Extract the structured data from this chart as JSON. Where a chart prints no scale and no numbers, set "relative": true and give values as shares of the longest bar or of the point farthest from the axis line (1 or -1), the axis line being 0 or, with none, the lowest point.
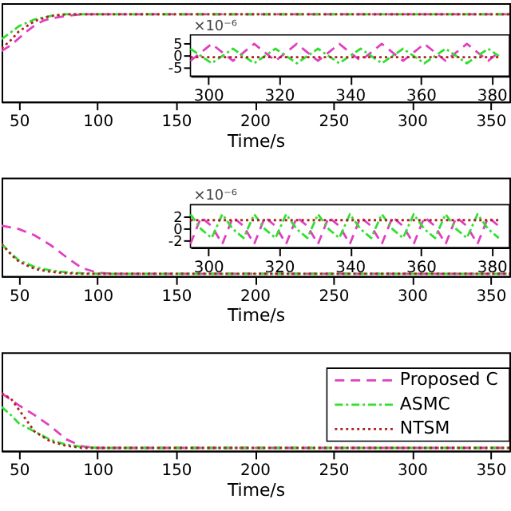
{
  "chart_data": [
    {
      "type": "line",
      "relative": true,
      "xlim": [
        39,
        362
      ],
      "xticks": [
        50,
        100,
        150,
        200,
        250,
        300,
        350
      ],
      "xlabel": "Time/s",
      "series": [
        {
          "color": "#e040c0",
          "line_style": "dashed",
          "x": [
            39,
            45,
            50,
            55,
            60,
            65,
            70,
            80,
            90,
            100,
            362
          ],
          "values": [
            0.57,
            0.64,
            0.72,
            0.8,
            0.87,
            0.92,
            0.95,
            0.98,
            1,
            1,
            1
          ]
        },
        {
          "color": "#30e030",
          "line_style": "dashdot",
          "x": [
            39,
            45,
            50,
            60,
            70,
            80,
            90,
            362
          ],
          "values": [
            0.71,
            0.79,
            0.86,
            0.94,
            0.98,
            1,
            1,
            1
          ]
        },
        {
          "color": "#b02020",
          "line_style": "dotted",
          "x": [
            39,
            45,
            50,
            60,
            70,
            80,
            90,
            362
          ],
          "values": [
            0.6,
            0.7,
            0.8,
            0.92,
            0.98,
            1,
            1,
            1
          ]
        }
      ]
    },
    {
      "type": "line",
      "xlim": [
        295,
        385
      ],
      "xticks": [
        300,
        320,
        340,
        360,
        380
      ],
      "ylim": [
        -8.3,
        8.7
      ],
      "yticks": [
        5,
        0,
        -5
      ],
      "annotations": [
        "×10⁻⁶"
      ],
      "series": [
        {
          "color": "#e040c0",
          "line_style": "dashed",
          "x": [
            295,
            298,
            301,
            304,
            307,
            310,
            313,
            316,
            319,
            322,
            325,
            328,
            331,
            334,
            337,
            340,
            343,
            346,
            349,
            352,
            355,
            358,
            361,
            364,
            367,
            370,
            373,
            376,
            379,
            382
          ],
          "values": [
            -2,
            1.5,
            5,
            1.5,
            -2,
            1.5,
            5,
            1.5,
            -2,
            1.5,
            5,
            1.5,
            -2,
            1.5,
            5,
            1.5,
            -2,
            1.5,
            5,
            1.5,
            -2,
            1.5,
            5,
            1.5,
            -2,
            1.5,
            5,
            1.5,
            -2,
            1.5
          ]
        },
        {
          "color": "#30e030",
          "line_style": "dashdot",
          "x": [
            295,
            298,
            301,
            304,
            307,
            310,
            313,
            316,
            319,
            322,
            325,
            328,
            331,
            334,
            337,
            340,
            343,
            346,
            349,
            352,
            355,
            358,
            361,
            364,
            367,
            370,
            373,
            376,
            379,
            382
          ],
          "values": [
            3,
            0,
            -3,
            0,
            3,
            0,
            -3,
            0,
            3,
            0,
            -3,
            0,
            3,
            0,
            -3,
            0,
            3,
            0,
            -3,
            0,
            3,
            0,
            -3,
            0,
            3,
            0,
            -3,
            0,
            3,
            0
          ]
        },
        {
          "color": "#b02020",
          "line_style": "dotted",
          "x": [
            295,
            382
          ],
          "values": [
            -0.5,
            -0.5
          ]
        }
      ]
    },
    {
      "type": "line",
      "relative": true,
      "xlim": [
        39,
        362
      ],
      "xticks": [
        50,
        100,
        150,
        200,
        250,
        300,
        350
      ],
      "xlabel": "Time/s",
      "series": [
        {
          "color": "#e040c0",
          "line_style": "dashed",
          "x": [
            39,
            50,
            60,
            70,
            80,
            90,
            100,
            110,
            362
          ],
          "values": [
            1,
            0.93,
            0.8,
            0.6,
            0.35,
            0.12,
            0.02,
            0,
            0
          ]
        },
        {
          "color": "#30e030",
          "line_style": "dashdot",
          "x": [
            39,
            45,
            50,
            60,
            70,
            80,
            90,
            100,
            362
          ],
          "values": [
            0.62,
            0.42,
            0.28,
            0.14,
            0.07,
            0.03,
            0.01,
            0,
            0
          ]
        },
        {
          "color": "#b02020",
          "line_style": "dotted",
          "x": [
            39,
            45,
            50,
            60,
            70,
            80,
            90,
            100,
            362
          ],
          "values": [
            0.62,
            0.4,
            0.25,
            0.1,
            0.04,
            0.01,
            0,
            0,
            0
          ]
        }
      ]
    },
    {
      "type": "line",
      "xlim": [
        295,
        385
      ],
      "xticks": [
        300,
        320,
        340,
        360,
        380
      ],
      "ylim": [
        -3.1,
        4.1
      ],
      "yticks": [
        2,
        0,
        -2
      ],
      "annotations": [
        "×10⁻⁶"
      ],
      "series": [
        {
          "color": "#e040c0",
          "line_style": "dashed",
          "x": [
            295,
            298,
            301,
            304,
            307,
            310,
            313,
            316,
            319,
            322,
            325,
            328,
            331,
            334,
            337,
            340,
            343,
            346,
            349,
            352,
            355,
            358,
            361,
            364,
            367,
            370,
            373,
            376,
            379,
            382
          ],
          "values": [
            -2.5,
            2,
            0.5,
            -2.5,
            2,
            0.5,
            -2.5,
            2,
            0.5,
            -2.5,
            2,
            0.5,
            -2.5,
            2,
            0.5,
            -2.5,
            2,
            0.5,
            -2.5,
            2,
            0.5,
            -2.5,
            2,
            0.5,
            -2.5,
            2,
            0.5,
            -2.5,
            2,
            0.5
          ]
        },
        {
          "color": "#30e030",
          "line_style": "dashdot",
          "x": [
            295,
            298,
            301,
            304,
            307,
            310,
            313,
            316,
            319,
            322,
            325,
            328,
            331,
            334,
            337,
            340,
            343,
            346,
            349,
            352,
            355,
            358,
            361,
            364,
            367,
            370,
            373,
            376,
            379,
            382
          ],
          "values": [
            2.5,
            0,
            -1.5,
            2.5,
            0,
            -1.5,
            2.5,
            0,
            -1.5,
            2.5,
            0,
            -1.5,
            2.5,
            0,
            -1.5,
            2.5,
            0,
            -1.5,
            2.5,
            0,
            -1.5,
            2.5,
            0,
            -1.5,
            2.5,
            0,
            -1.5,
            2.5,
            0,
            -1.5
          ]
        },
        {
          "color": "#b02020",
          "line_style": "dotted",
          "x": [
            295,
            382
          ],
          "values": [
            1.5,
            1.5
          ]
        }
      ]
    },
    {
      "type": "line",
      "relative": true,
      "xlim": [
        39,
        362
      ],
      "xticks": [
        50,
        100,
        150,
        200,
        250,
        300,
        350
      ],
      "xlabel": "Time/s",
      "legend": "top right",
      "series": [
        {
          "name": "Proposed C",
          "color": "#e040c0",
          "line_style": "dashed",
          "x": [
            39,
            50,
            60,
            70,
            80,
            90,
            100,
            362
          ],
          "values": [
            1,
            0.78,
            0.6,
            0.4,
            0.16,
            0.03,
            0,
            0
          ]
        },
        {
          "name": "ASMC",
          "color": "#30e030",
          "line_style": "dashdot",
          "x": [
            39,
            45,
            50,
            60,
            70,
            80,
            90,
            100,
            362
          ],
          "values": [
            0.75,
            0.6,
            0.45,
            0.3,
            0.15,
            0.06,
            0.02,
            0,
            0
          ]
        },
        {
          "name": "NTSM",
          "color": "#b02020",
          "line_style": "dotted",
          "x": [
            39,
            45,
            50,
            60,
            70,
            80,
            90,
            362
          ],
          "values": [
            1,
            0.9,
            0.7,
            0.3,
            0.12,
            0.04,
            0,
            0
          ]
        }
      ]
    }
  ]
}
